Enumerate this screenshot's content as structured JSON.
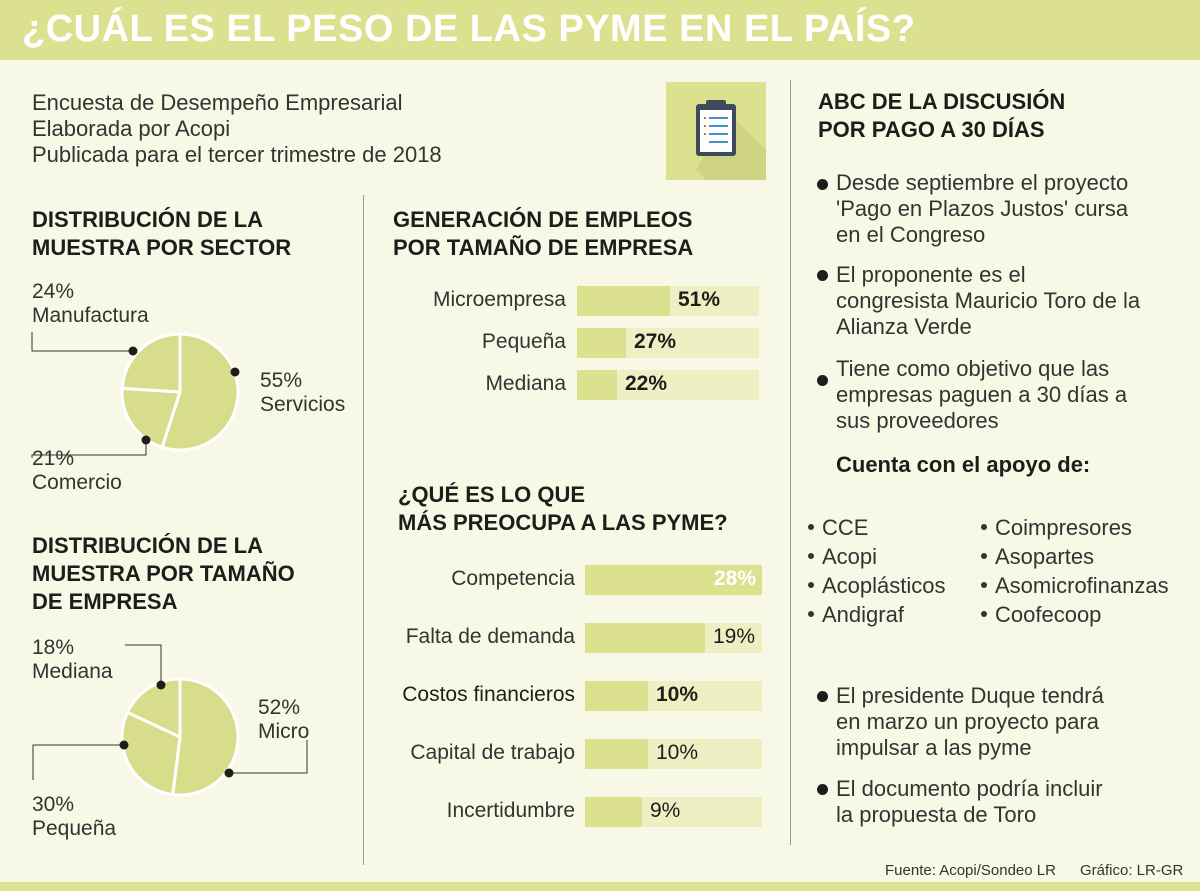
{
  "header": {
    "title": "¿CUÁL ES EL PESO DE LAS PYME EN EL PAÍS?"
  },
  "intro": {
    "lines": [
      "Encuesta de Desempeño Empresarial",
      "Elaborada por Acopi",
      "Publicada para el tercer trimestre de 2018"
    ],
    "icon": "clipboard-icon"
  },
  "sector": {
    "title_lines": [
      "DISTRIBUCIÓN DE LA",
      "MUESTRA POR SECTOR"
    ],
    "slices": [
      {
        "pct": "24%",
        "name": "Manufactura"
      },
      {
        "pct": "55%",
        "name": "Servicios"
      },
      {
        "pct": "21%",
        "name": "Comercio"
      }
    ]
  },
  "size": {
    "title_lines": [
      "DISTRIBUCIÓN DE LA",
      "MUESTRA POR TAMAÑO",
      "DE EMPRESA"
    ],
    "slices": [
      {
        "pct": "18%",
        "name": "Mediana"
      },
      {
        "pct": "52%",
        "name": "Micro"
      },
      {
        "pct": "30%",
        "name": "Pequeña"
      }
    ]
  },
  "employment": {
    "title_lines": [
      "GENERACIÓN DE EMPLEOS",
      "POR TAMAÑO DE EMPRESA"
    ],
    "bars": [
      {
        "label": "Microempresa",
        "value_text": "51%"
      },
      {
        "label": "Pequeña",
        "value_text": "27%"
      },
      {
        "label": "Mediana",
        "value_text": "22%"
      }
    ]
  },
  "concerns": {
    "title_lines": [
      "¿QUÉ ES LO QUE",
      "MÁS PREOCUPA A LAS PYME?"
    ],
    "bars": [
      {
        "label": "Competencia",
        "value_text": "28%"
      },
      {
        "label": "Falta de demanda",
        "value_text": "19%"
      },
      {
        "label": "Costos financieros",
        "value_text": "10%"
      },
      {
        "label": "Capital de trabajo",
        "value_text": "10%"
      },
      {
        "label": "Incertidumbre",
        "value_text": "9%"
      }
    ]
  },
  "abc": {
    "title_lines": [
      "ABC DE LA DISCUSIÓN",
      "POR PAGO A 30 DÍAS"
    ],
    "bullets_top": [
      [
        "Desde septiembre el proyecto",
        "'Pago en Plazos Justos' cursa",
        "en el Congreso"
      ],
      [
        "El proponente es el",
        "congresista Mauricio Toro de la",
        "Alianza Verde"
      ],
      [
        "Tiene como objetivo que las",
        "empresas paguen a 30 días a",
        "sus proveedores"
      ]
    ],
    "support_title": "Cuenta con el apoyo de:",
    "support_left": [
      "CCE",
      "Acopi",
      "Acoplásticos",
      "Andigraf"
    ],
    "support_right": [
      "Coimpresores",
      "Asopartes",
      "Asomicrofinanzas",
      "Coofecoop"
    ],
    "bullets_bottom": [
      [
        "El presidente Duque tendrá",
        "en marzo un proyecto para",
        "impulsar a las pyme"
      ],
      [
        "El documento podría incluir",
        "la propuesta de Toro"
      ]
    ]
  },
  "footer": {
    "source": "Fuente: Acopi/Sondeo LR",
    "credit": "Gráfico: LR-GR"
  },
  "chart_data": [
    {
      "type": "pie",
      "title": "DISTRIBUCIÓN DE LA MUESTRA POR SECTOR",
      "categories": [
        "Manufactura",
        "Servicios",
        "Comercio"
      ],
      "values": [
        24,
        55,
        21
      ]
    },
    {
      "type": "pie",
      "title": "DISTRIBUCIÓN DE LA MUESTRA POR TAMAÑO DE EMPRESA",
      "categories": [
        "Mediana",
        "Micro",
        "Pequeña"
      ],
      "values": [
        18,
        52,
        30
      ]
    },
    {
      "type": "bar",
      "title": "GENERACIÓN DE EMPLEOS POR TAMAÑO DE EMPRESA",
      "categories": [
        "Microempresa",
        "Pequeña",
        "Mediana"
      ],
      "values": [
        51,
        27,
        22
      ],
      "ylim": [
        0,
        100
      ]
    },
    {
      "type": "bar",
      "title": "¿QUÉ ES LO QUE MÁS PREOCUPA A LAS PYME?",
      "categories": [
        "Competencia",
        "Falta de demanda",
        "Costos financieros",
        "Capital de trabajo",
        "Incertidumbre"
      ],
      "values": [
        28,
        19,
        10,
        10,
        9
      ],
      "ylim": [
        0,
        28
      ]
    }
  ],
  "colors": {
    "accent": "#dbe18f",
    "accent_light": "#eef0c4",
    "pie_fill": "#d7dd8b",
    "background": "#f8f8e6",
    "text": "#1d1d1b"
  }
}
